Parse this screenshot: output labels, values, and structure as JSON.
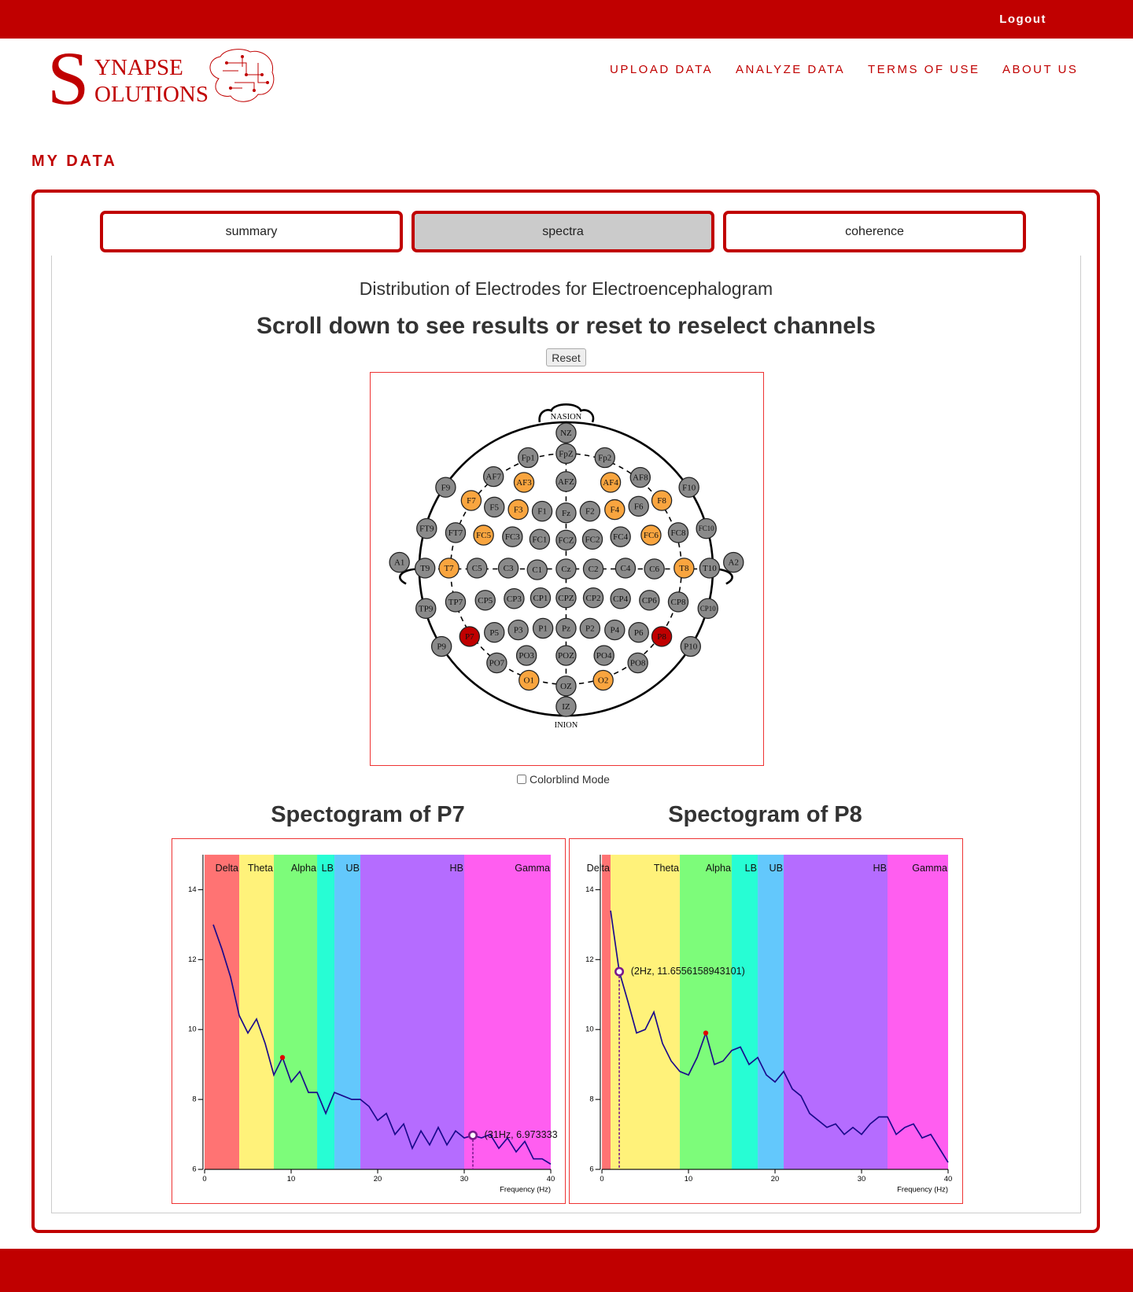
{
  "header": {
    "logout": "Logout",
    "logo": {
      "initial": "S",
      "line1": "YNAPSE",
      "line2": "OLUTIONS"
    },
    "nav": [
      "UPLOAD DATA",
      "ANALYZE DATA",
      "TERMS OF USE",
      "ABOUT US"
    ]
  },
  "page_title": "MY DATA",
  "tabs": [
    "summary",
    "spectra",
    "coherence"
  ],
  "electrode_map": {
    "title": "Distribution of Electrodes for Electroencephalogram",
    "subtitle": "Scroll down to see results or reset to reselect channels",
    "reset": "Reset",
    "nasion": "NASION",
    "inion": "INION",
    "colorblind": "Colorblind Mode",
    "electrodes": [
      {
        "label": "NZ",
        "color": "#8a8a8a"
      },
      {
        "label": "Fp1",
        "color": "#8a8a8a"
      },
      {
        "label": "FpZ",
        "color": "#8a8a8a"
      },
      {
        "label": "Fp2",
        "color": "#8a8a8a"
      },
      {
        "label": "AF7",
        "color": "#8a8a8a"
      },
      {
        "label": "AF3",
        "color": "#f9a53f"
      },
      {
        "label": "AFZ",
        "color": "#8a8a8a"
      },
      {
        "label": "AF4",
        "color": "#f9a53f"
      },
      {
        "label": "AF8",
        "color": "#8a8a8a"
      },
      {
        "label": "F9",
        "color": "#8a8a8a"
      },
      {
        "label": "F7",
        "color": "#f9a53f"
      },
      {
        "label": "F5",
        "color": "#8a8a8a"
      },
      {
        "label": "F3",
        "color": "#f9a53f"
      },
      {
        "label": "F1",
        "color": "#8a8a8a"
      },
      {
        "label": "Fz",
        "color": "#8a8a8a"
      },
      {
        "label": "F2",
        "color": "#8a8a8a"
      },
      {
        "label": "F4",
        "color": "#f9a53f"
      },
      {
        "label": "F6",
        "color": "#8a8a8a"
      },
      {
        "label": "F8",
        "color": "#f9a53f"
      },
      {
        "label": "F10",
        "color": "#8a8a8a"
      },
      {
        "label": "FT9",
        "color": "#8a8a8a"
      },
      {
        "label": "FT7",
        "color": "#8a8a8a"
      },
      {
        "label": "FC5",
        "color": "#f9a53f"
      },
      {
        "label": "FC3",
        "color": "#8a8a8a"
      },
      {
        "label": "FC1",
        "color": "#8a8a8a"
      },
      {
        "label": "FCZ",
        "color": "#8a8a8a"
      },
      {
        "label": "FC2",
        "color": "#8a8a8a"
      },
      {
        "label": "FC4",
        "color": "#8a8a8a"
      },
      {
        "label": "FC6",
        "color": "#f9a53f"
      },
      {
        "label": "FC8",
        "color": "#8a8a8a"
      },
      {
        "label": "FC10",
        "color": "#8a8a8a"
      },
      {
        "label": "A1",
        "color": "#8a8a8a"
      },
      {
        "label": "T9",
        "color": "#8a8a8a"
      },
      {
        "label": "T7",
        "color": "#f9a53f"
      },
      {
        "label": "C5",
        "color": "#8a8a8a"
      },
      {
        "label": "C3",
        "color": "#8a8a8a"
      },
      {
        "label": "C1",
        "color": "#8a8a8a"
      },
      {
        "label": "Cz",
        "color": "#8a8a8a"
      },
      {
        "label": "C2",
        "color": "#8a8a8a"
      },
      {
        "label": "C4",
        "color": "#8a8a8a"
      },
      {
        "label": "C6",
        "color": "#8a8a8a"
      },
      {
        "label": "T8",
        "color": "#f9a53f"
      },
      {
        "label": "T10",
        "color": "#8a8a8a"
      },
      {
        "label": "A2",
        "color": "#8a8a8a"
      },
      {
        "label": "TP9",
        "color": "#8a8a8a"
      },
      {
        "label": "TP7",
        "color": "#8a8a8a"
      },
      {
        "label": "CP5",
        "color": "#8a8a8a"
      },
      {
        "label": "CP3",
        "color": "#8a8a8a"
      },
      {
        "label": "CP1",
        "color": "#8a8a8a"
      },
      {
        "label": "CPZ",
        "color": "#8a8a8a"
      },
      {
        "label": "CP2",
        "color": "#8a8a8a"
      },
      {
        "label": "CP4",
        "color": "#8a8a8a"
      },
      {
        "label": "CP6",
        "color": "#8a8a8a"
      },
      {
        "label": "CP8",
        "color": "#8a8a8a"
      },
      {
        "label": "CP10",
        "color": "#8a8a8a"
      },
      {
        "label": "P9",
        "color": "#8a8a8a"
      },
      {
        "label": "P7",
        "color": "#c00000"
      },
      {
        "label": "P5",
        "color": "#8a8a8a"
      },
      {
        "label": "P3",
        "color": "#8a8a8a"
      },
      {
        "label": "P1",
        "color": "#8a8a8a"
      },
      {
        "label": "Pz",
        "color": "#8a8a8a"
      },
      {
        "label": "P2",
        "color": "#8a8a8a"
      },
      {
        "label": "P4",
        "color": "#8a8a8a"
      },
      {
        "label": "P6",
        "color": "#8a8a8a"
      },
      {
        "label": "P8",
        "color": "#c00000"
      },
      {
        "label": "P10",
        "color": "#8a8a8a"
      },
      {
        "label": "PO7",
        "color": "#8a8a8a"
      },
      {
        "label": "PO3",
        "color": "#8a8a8a"
      },
      {
        "label": "POZ",
        "color": "#8a8a8a"
      },
      {
        "label": "PO4",
        "color": "#8a8a8a"
      },
      {
        "label": "PO8",
        "color": "#8a8a8a"
      },
      {
        "label": "O1",
        "color": "#f9a53f"
      },
      {
        "label": "OZ",
        "color": "#8a8a8a"
      },
      {
        "label": "O2",
        "color": "#f9a53f"
      },
      {
        "label": "IZ",
        "color": "#8a8a8a"
      }
    ]
  },
  "chart_data": [
    {
      "type": "line",
      "title": "Spectogram of P7",
      "xlabel": "Frequency (Hz)",
      "xlim": [
        0,
        40
      ],
      "ylim": [
        6,
        15
      ],
      "xticks": [
        0,
        10,
        20,
        30,
        40
      ],
      "yticks": [
        6,
        8,
        10,
        12,
        14
      ],
      "bands": [
        {
          "name": "Delta",
          "color": "#ff7373",
          "start": 0,
          "end": 4
        },
        {
          "name": "Theta",
          "color": "#fff27a",
          "start": 4,
          "end": 8
        },
        {
          "name": "Alpha",
          "color": "#7dfc7a",
          "start": 8,
          "end": 13
        },
        {
          "name": "LB",
          "color": "#27fdd4",
          "start": 13,
          "end": 15
        },
        {
          "name": "UB",
          "color": "#63c8fc",
          "start": 15,
          "end": 18
        },
        {
          "name": "HB",
          "color": "#b56cff",
          "start": 18,
          "end": 30
        },
        {
          "name": "Gamma",
          "color": "#ff5ef0",
          "start": 30,
          "end": 40
        }
      ],
      "x": [
        1,
        2,
        3,
        4,
        5,
        6,
        7,
        8,
        9,
        10,
        11,
        12,
        13,
        14,
        15,
        16,
        17,
        18,
        19,
        20,
        21,
        22,
        23,
        24,
        25,
        26,
        27,
        28,
        29,
        30,
        31,
        32,
        33,
        34,
        35,
        36,
        37,
        38,
        39,
        40
      ],
      "series": [
        {
          "color": "#1a0a8c",
          "values": [
            13.0,
            12.3,
            11.5,
            10.4,
            9.9,
            10.3,
            9.6,
            8.7,
            9.2,
            8.5,
            8.8,
            8.2,
            8.2,
            7.6,
            8.2,
            8.1,
            8.0,
            8.0,
            7.8,
            7.4,
            7.6,
            7.0,
            7.3,
            6.6,
            7.1,
            6.7,
            7.2,
            6.7,
            7.1,
            6.9,
            6.97,
            6.9,
            7.0,
            6.6,
            6.9,
            6.5,
            6.8,
            6.3,
            6.3,
            6.15
          ]
        }
      ],
      "peak": {
        "x": 9,
        "y": 9.2,
        "color": "#e00000"
      },
      "cursor": {
        "x": 31,
        "y": 6.973333,
        "label": "(31Hz, 6.973333",
        "color": "#7a1a8c"
      }
    },
    {
      "type": "line",
      "title": "Spectogram of P8",
      "xlabel": "Frequency (Hz)",
      "xlim": [
        0,
        40
      ],
      "ylim": [
        6,
        15
      ],
      "xticks": [
        0,
        10,
        20,
        30,
        40
      ],
      "yticks": [
        6,
        8,
        10,
        12,
        14
      ],
      "bands": [
        {
          "name": "Delta",
          "color": "#ff7373",
          "start": 0,
          "end": 1
        },
        {
          "name": "Theta",
          "color": "#fff27a",
          "start": 1,
          "end": 9
        },
        {
          "name": "Alpha",
          "color": "#7dfc7a",
          "start": 9,
          "end": 15
        },
        {
          "name": "LB",
          "color": "#27fdd4",
          "start": 15,
          "end": 18
        },
        {
          "name": "UB",
          "color": "#63c8fc",
          "start": 18,
          "end": 21
        },
        {
          "name": "HB",
          "color": "#b56cff",
          "start": 21,
          "end": 33
        },
        {
          "name": "Gamma",
          "color": "#ff5ef0",
          "start": 33,
          "end": 40
        }
      ],
      "x": [
        1,
        2,
        3,
        4,
        5,
        6,
        7,
        8,
        9,
        10,
        11,
        12,
        13,
        14,
        15,
        16,
        17,
        18,
        19,
        20,
        21,
        22,
        23,
        24,
        25,
        26,
        27,
        28,
        29,
        30,
        31,
        32,
        33,
        34,
        35,
        36,
        37,
        38,
        39,
        40
      ],
      "series": [
        {
          "color": "#1a0a8c",
          "values": [
            13.4,
            11.66,
            10.8,
            9.9,
            10.0,
            10.5,
            9.6,
            9.1,
            8.8,
            8.7,
            9.2,
            9.9,
            9.0,
            9.1,
            9.4,
            9.5,
            9.0,
            9.2,
            8.7,
            8.5,
            8.8,
            8.3,
            8.1,
            7.6,
            7.4,
            7.2,
            7.3,
            7.0,
            7.2,
            7.0,
            7.3,
            7.5,
            7.5,
            7.0,
            7.2,
            7.3,
            6.9,
            7.0,
            6.6,
            6.2
          ]
        }
      ],
      "peak": {
        "x": 12,
        "y": 9.9,
        "color": "#e00000"
      },
      "cursor": {
        "x": 2,
        "y": 11.6556158943101,
        "label": "(2Hz, 11.6556158943101)",
        "color": "#7a1a8c"
      }
    }
  ]
}
